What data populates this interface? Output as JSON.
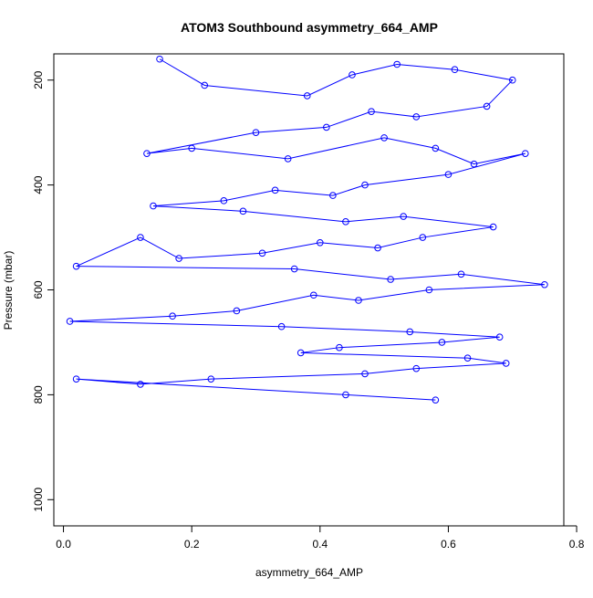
{
  "chart_data": {
    "type": "scatter",
    "title": "ATOM3 Southbound asymmetry_664_AMP",
    "xlabel": "asymmetry_664_AMP",
    "ylabel": "Pressure (mbar)",
    "xlim": [
      -0.015,
      0.78
    ],
    "ylim": [
      1050,
      150
    ],
    "y_reversed": true,
    "x_ticks": [
      0.0,
      0.2,
      0.4,
      0.6,
      0.8
    ],
    "x_tick_labels": [
      "0.0",
      "0.2",
      "0.4",
      "0.6",
      "0.8"
    ],
    "y_ticks": [
      200,
      400,
      600,
      800,
      1000
    ],
    "y_tick_labels": [
      "200",
      "400",
      "600",
      "800",
      "1000"
    ],
    "grid": false,
    "series": [
      {
        "color": "#0000ff",
        "marker": "open-circle",
        "connected": true,
        "x": [
          0.15,
          0.22,
          0.38,
          0.45,
          0.52,
          0.61,
          0.7,
          0.66,
          0.55,
          0.48,
          0.41,
          0.3,
          0.13,
          0.2,
          0.35,
          0.5,
          0.58,
          0.64,
          0.72,
          0.6,
          0.47,
          0.42,
          0.33,
          0.25,
          0.14,
          0.28,
          0.44,
          0.53,
          0.67,
          0.56,
          0.49,
          0.4,
          0.31,
          0.18,
          0.12,
          0.02,
          0.36,
          0.51,
          0.62,
          0.75,
          0.57,
          0.46,
          0.39,
          0.27,
          0.17,
          0.01,
          0.34,
          0.54,
          0.68,
          0.59,
          0.43,
          0.37,
          0.63,
          0.69,
          0.55,
          0.47,
          0.23,
          0.12,
          0.02,
          0.44,
          0.58
        ],
        "y": [
          160,
          210,
          230,
          190,
          170,
          180,
          200,
          250,
          270,
          260,
          290,
          300,
          340,
          330,
          350,
          310,
          330,
          360,
          340,
          380,
          400,
          420,
          410,
          430,
          440,
          450,
          470,
          460,
          480,
          500,
          520,
          510,
          530,
          540,
          500,
          555,
          560,
          580,
          570,
          590,
          600,
          620,
          610,
          640,
          650,
          660,
          670,
          680,
          690,
          700,
          710,
          720,
          730,
          740,
          750,
          760,
          770,
          780,
          770,
          800,
          810
        ]
      }
    ]
  }
}
